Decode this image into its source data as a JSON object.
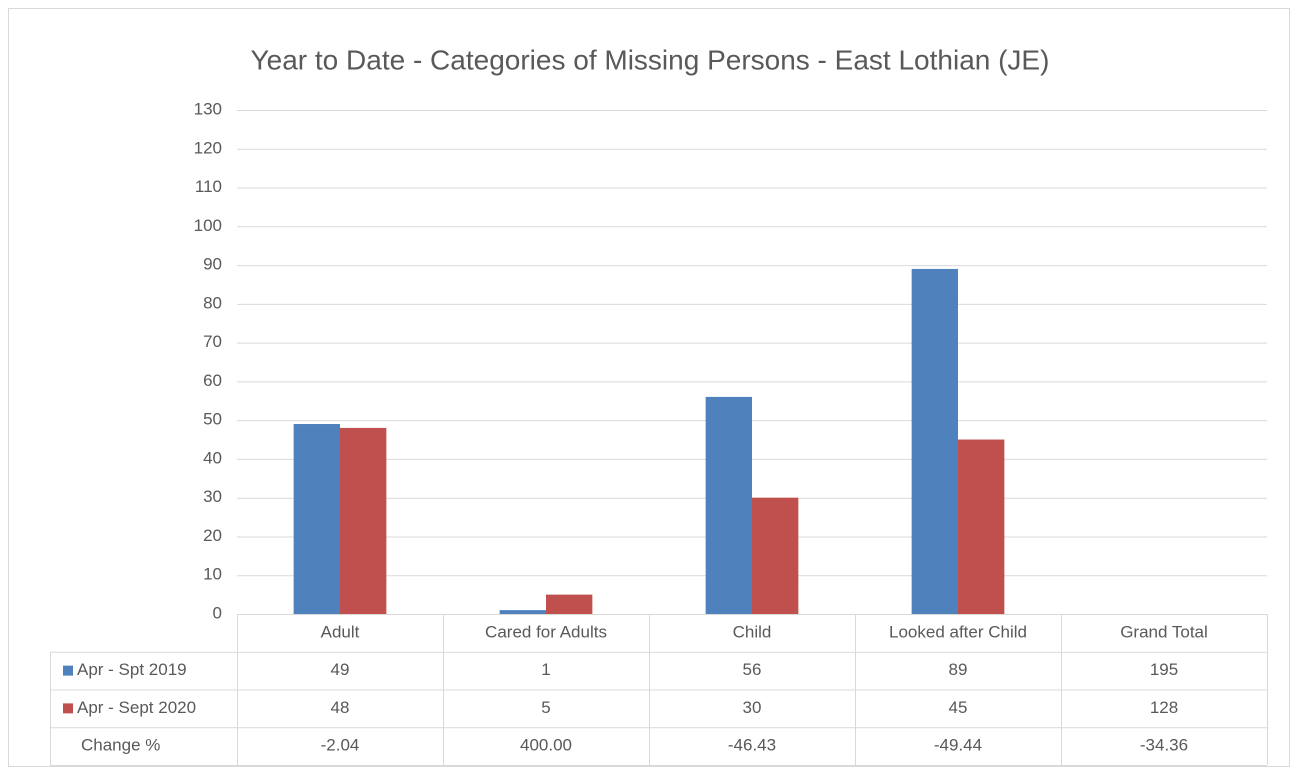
{
  "chart_data": {
    "type": "bar",
    "title": "Year to Date - Categories of Missing Persons - East Lothian (JE)",
    "categories": [
      "Adult",
      "Cared for Adults",
      "Child",
      "Looked after Child"
    ],
    "total_label": "Grand Total",
    "series": [
      {
        "name": "Apr - Spt 2019",
        "color": "#4f81bd",
        "values": [
          49,
          1,
          56,
          89
        ],
        "total": 195
      },
      {
        "name": "Apr - Sept 2020",
        "color": "#c0504d",
        "values": [
          48,
          5,
          30,
          45
        ],
        "total": 128
      }
    ],
    "change": {
      "name": "Change %",
      "values": [
        "-2.04",
        "400.00",
        "-46.43",
        "-49.44",
        "-34.36"
      ]
    },
    "ylim": [
      0,
      130
    ],
    "yticks": [
      0,
      10,
      20,
      30,
      40,
      50,
      60,
      70,
      80,
      90,
      100,
      110,
      120,
      130
    ],
    "grid": true
  }
}
